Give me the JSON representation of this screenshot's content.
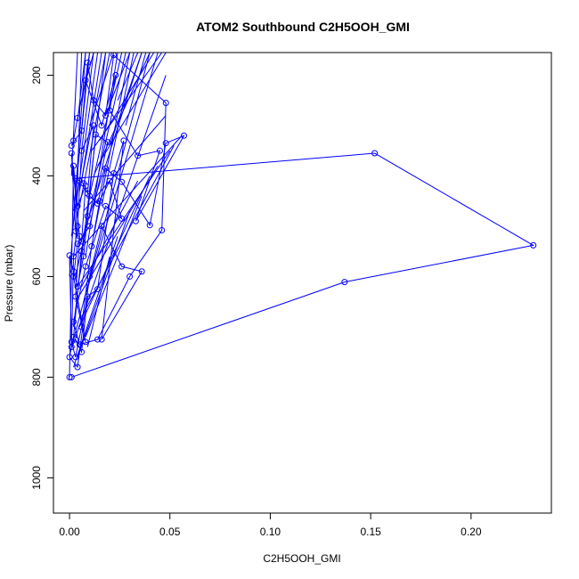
{
  "chart_data": {
    "type": "line",
    "title": "ATOM2 Southbound C2H5OOH_GMI",
    "xlabel": "C2H5OOH_GMI",
    "ylabel": "Pressure (mbar)",
    "xlim": [
      -0.008,
      0.24
    ],
    "ylim": [
      1070,
      155
    ],
    "y_reversed": true,
    "x_ticks": [
      0.0,
      0.05,
      0.1,
      0.15,
      0.2
    ],
    "x_tick_labels": [
      "0.00",
      "0.05",
      "0.10",
      "0.15",
      "0.20"
    ],
    "y_ticks": [
      200,
      400,
      600,
      800,
      1000
    ],
    "y_tick_labels": [
      "200",
      "400",
      "600",
      "800",
      "1000"
    ],
    "grid": false,
    "series_color": "#0000ff",
    "series": [
      {
        "points": [
          [
            0.001,
            800
          ],
          [
            0.137,
            611
          ],
          [
            0.231,
            538
          ],
          [
            0.152,
            355
          ],
          [
            0.003,
            405
          ],
          [
            0.005,
            410
          ],
          [
            0.007,
            415
          ],
          [
            0.009,
            435
          ],
          [
            0.012,
            300
          ],
          [
            0.006,
            350
          ],
          [
            0.004,
            500
          ],
          [
            0.002,
            560
          ],
          [
            0.001,
            740
          ],
          [
            0.003,
            725
          ],
          [
            0.006,
            750
          ],
          [
            0.009,
            640
          ],
          [
            0.014,
            625
          ],
          [
            0.022,
            395
          ],
          [
            0.027,
            330
          ],
          [
            0.016,
            725
          ],
          [
            0.036,
            590
          ],
          [
            0.026,
            580
          ],
          [
            0.016,
            500
          ],
          [
            0.01,
            600
          ],
          [
            0.004,
            780
          ],
          [
            0.0,
            760
          ],
          [
            0.002,
            720
          ],
          [
            0.006,
            550
          ],
          [
            0.01,
            440
          ],
          [
            0.014,
            455
          ],
          [
            0.018,
            385
          ],
          [
            0.026,
            412
          ],
          [
            0.04,
            498
          ],
          [
            0.048,
            335
          ],
          [
            0.057,
            320
          ],
          [
            0.033,
            490
          ],
          [
            0.045,
            350
          ],
          [
            0.034,
            360
          ],
          [
            0.02,
            270
          ],
          [
            0.023,
            200
          ],
          [
            0.016,
            300
          ],
          [
            0.008,
            210
          ],
          [
            0.004,
            285
          ],
          [
            0.002,
            330
          ],
          [
            0.001,
            340
          ],
          [
            0.006,
            310
          ],
          [
            0.009,
            175
          ],
          [
            0.012,
            250
          ],
          [
            0.018,
            280
          ],
          [
            0.022,
            160
          ],
          [
            0.048,
            255
          ],
          [
            0.046,
            508
          ],
          [
            0.03,
            600
          ],
          [
            0.014,
            725
          ],
          [
            0.005,
            735
          ],
          [
            0.002,
            690
          ],
          [
            0.008,
            580
          ],
          [
            0.018,
            460
          ],
          [
            0.026,
            485
          ],
          [
            0.02,
            410
          ],
          [
            0.015,
            450
          ],
          [
            0.011,
            540
          ],
          [
            0.006,
            700
          ],
          [
            0.003,
            760
          ],
          [
            0.001,
            730
          ],
          [
            0.0,
            558
          ],
          [
            0.002,
            590
          ],
          [
            0.004,
            620
          ],
          [
            0.007,
            560
          ],
          [
            0.009,
            480
          ],
          [
            0.013,
            318
          ],
          [
            0.019,
            333
          ],
          [
            0.01,
            500
          ],
          [
            0.004,
            535
          ],
          [
            0.002,
            600
          ],
          [
            0.008,
            730
          ],
          [
            0.003,
            640
          ],
          [
            0.005,
            520
          ],
          [
            0.001,
            355
          ],
          [
            0.003,
            510
          ],
          [
            0.006,
            530
          ],
          [
            0.008,
            420
          ],
          [
            0.004,
            460
          ],
          [
            0.002,
            380
          ],
          [
            0.0,
            800
          ]
        ]
      }
    ],
    "background_segments": [
      [
        0.006,
        410,
        0.016,
        155
      ],
      [
        0.004,
        480,
        0.02,
        155
      ],
      [
        0.01,
        440,
        0.026,
        155
      ],
      [
        0.003,
        600,
        0.028,
        155
      ],
      [
        0.012,
        520,
        0.03,
        155
      ],
      [
        0.008,
        560,
        0.024,
        155
      ],
      [
        0.002,
        700,
        0.018,
        155
      ],
      [
        0.016,
        460,
        0.032,
        155
      ],
      [
        0.005,
        540,
        0.036,
        155
      ],
      [
        0.001,
        740,
        0.04,
        155
      ],
      [
        0.007,
        650,
        0.044,
        155
      ],
      [
        0.014,
        380,
        0.048,
        155
      ],
      [
        0.003,
        720,
        0.048,
        200
      ],
      [
        0.01,
        300,
        0.022,
        155
      ],
      [
        0.006,
        350,
        0.012,
        155
      ],
      [
        0.002,
        560,
        0.056,
        320
      ],
      [
        0.004,
        620,
        0.05,
        350
      ],
      [
        0.006,
        680,
        0.052,
        340
      ],
      [
        0.003,
        650,
        0.044,
        380
      ],
      [
        0.005,
        700,
        0.04,
        400
      ],
      [
        0.008,
        720,
        0.036,
        440
      ],
      [
        0.012,
        400,
        0.04,
        155
      ],
      [
        0.009,
        200,
        0.012,
        155
      ],
      [
        0.006,
        260,
        0.01,
        155
      ],
      [
        0.004,
        290,
        0.008,
        155
      ],
      [
        0.018,
        280,
        0.03,
        155
      ],
      [
        0.02,
        340,
        0.036,
        155
      ],
      [
        0.024,
        250,
        0.034,
        155
      ],
      [
        0.028,
        300,
        0.038,
        155
      ],
      [
        0.001,
        520,
        0.014,
        155
      ],
      [
        0.002,
        470,
        0.01,
        155
      ],
      [
        0.005,
        430,
        0.018,
        155
      ],
      [
        0.0,
        600,
        0.008,
        155
      ],
      [
        0.003,
        540,
        0.006,
        155
      ],
      [
        0.001,
        400,
        0.004,
        155
      ],
      [
        0.011,
        350,
        0.046,
        155
      ],
      [
        0.015,
        330,
        0.042,
        155
      ],
      [
        0.007,
        470,
        0.048,
        280
      ],
      [
        0.004,
        760,
        0.03,
        470
      ],
      [
        0.002,
        780,
        0.024,
        520
      ],
      [
        0.009,
        740,
        0.02,
        560
      ],
      [
        0.006,
        620,
        0.034,
        410
      ]
    ]
  }
}
